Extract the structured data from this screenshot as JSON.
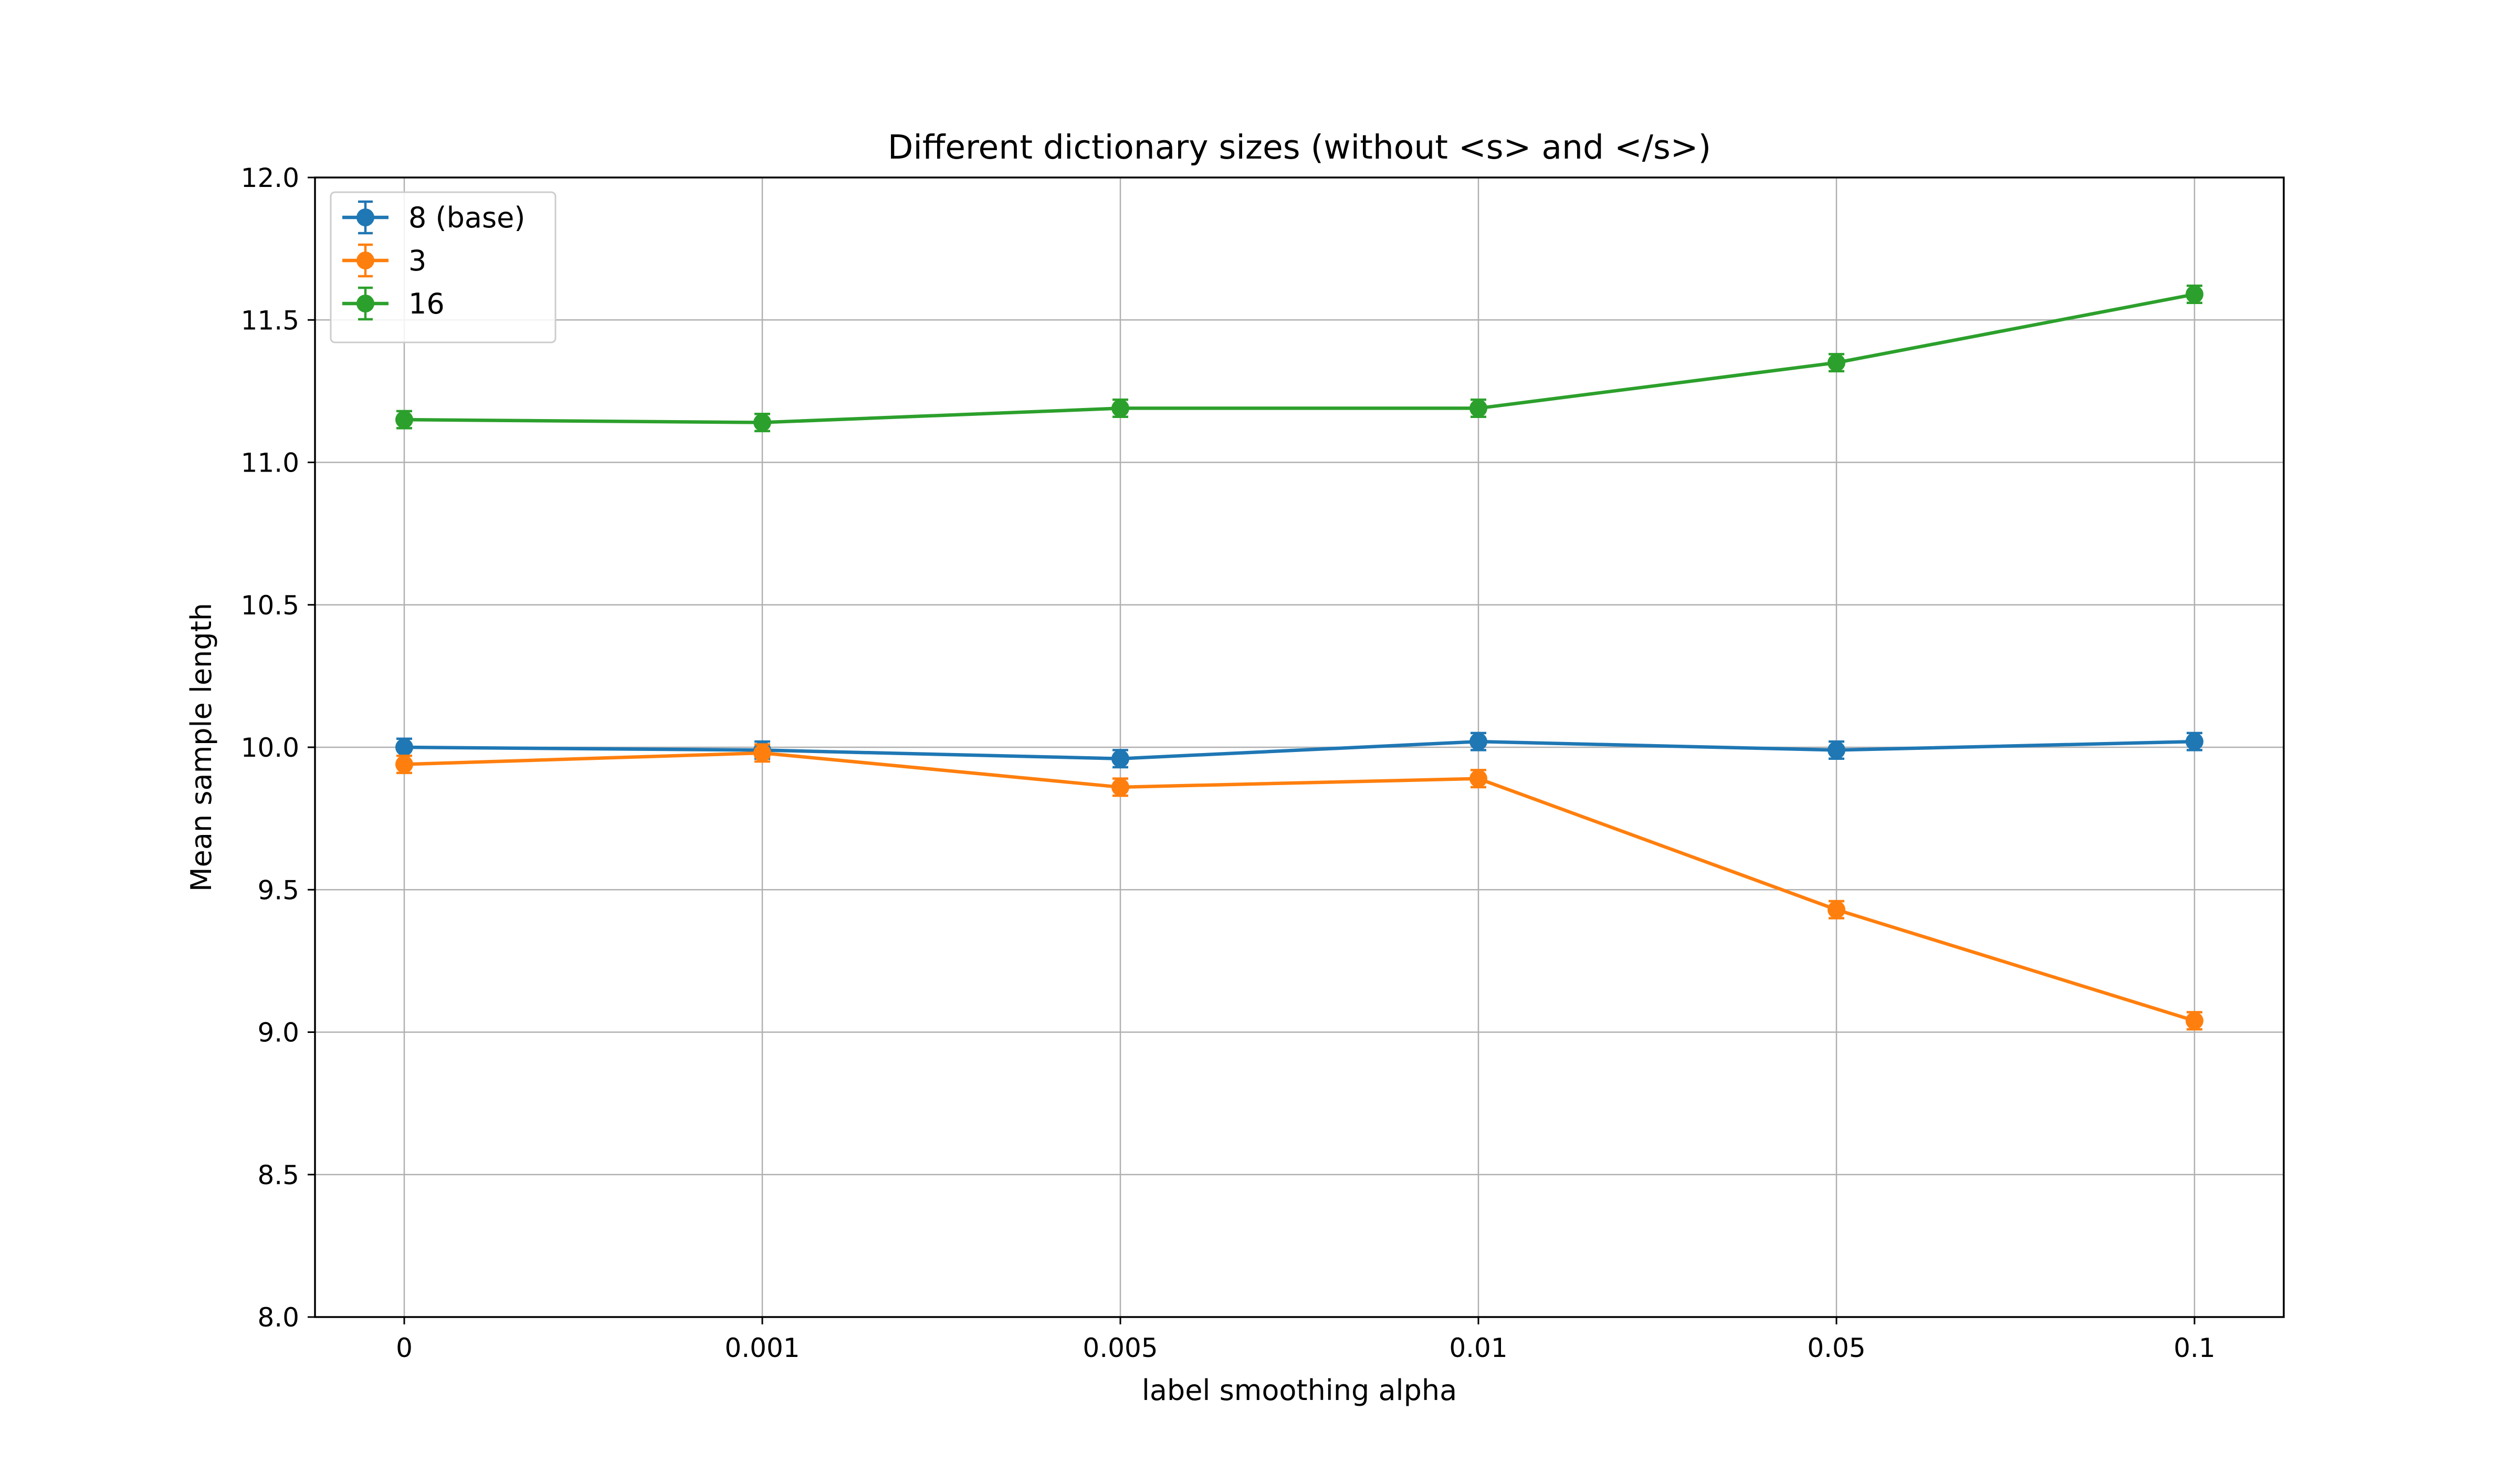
{
  "chart_data": {
    "type": "line",
    "title": "Different dictionary sizes (without <s> and </s>)",
    "xlabel": "label smoothing alpha",
    "ylabel": "Mean sample length",
    "categories": [
      "0",
      "0.001",
      "0.005",
      "0.01",
      "0.05",
      "0.1"
    ],
    "ylim": [
      8.0,
      12.0
    ],
    "yticks": [
      "8.0",
      "8.5",
      "9.0",
      "9.5",
      "10.0",
      "10.5",
      "11.0",
      "11.5",
      "12.0"
    ],
    "grid": true,
    "legend_position": "top-left",
    "series": [
      {
        "name": "8 (base)",
        "color": "#1f77b4",
        "values": [
          10.0,
          9.99,
          9.96,
          10.02,
          9.99,
          10.02
        ],
        "errors": [
          0.03,
          0.03,
          0.03,
          0.03,
          0.03,
          0.03
        ]
      },
      {
        "name": "3",
        "color": "#ff7f0e",
        "values": [
          9.94,
          9.98,
          9.86,
          9.89,
          9.43,
          9.04
        ],
        "errors": [
          0.03,
          0.03,
          0.03,
          0.03,
          0.03,
          0.03
        ]
      },
      {
        "name": "16",
        "color": "#2ca02c",
        "values": [
          11.15,
          11.14,
          11.19,
          11.19,
          11.35,
          11.59
        ],
        "errors": [
          0.03,
          0.03,
          0.03,
          0.03,
          0.03,
          0.03
        ]
      }
    ]
  }
}
